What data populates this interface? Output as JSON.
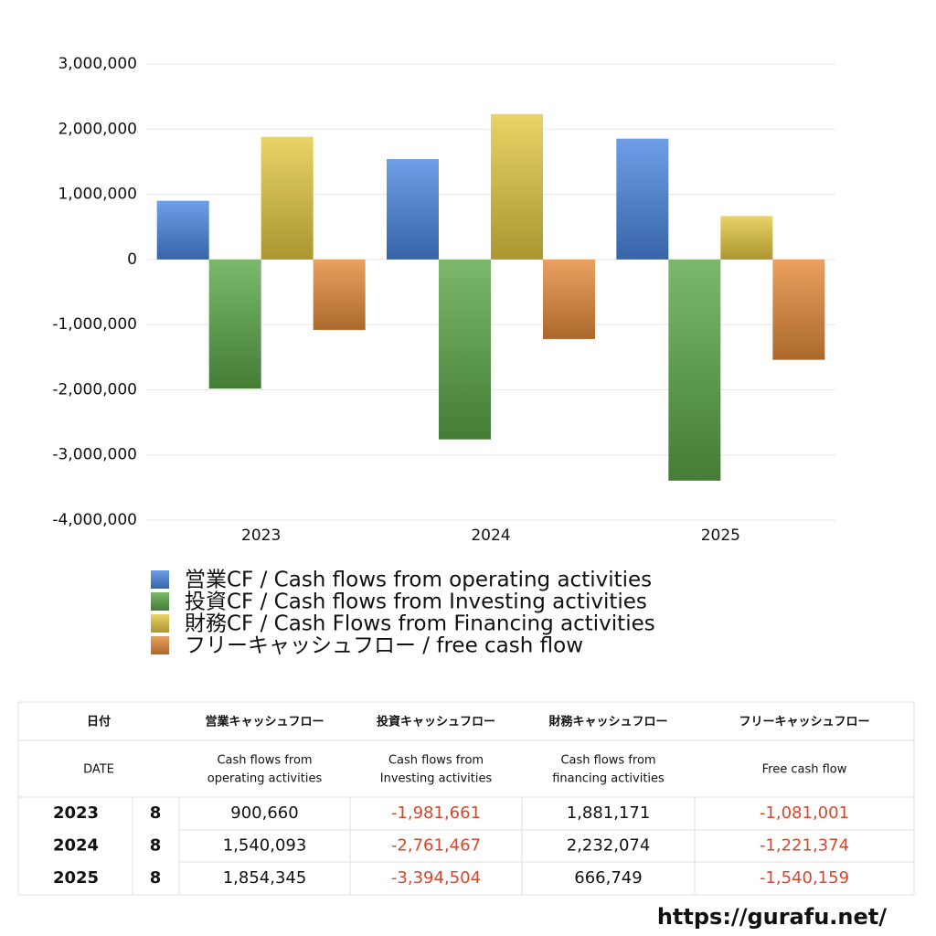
{
  "chart_data": {
    "type": "bar",
    "categories": [
      "2023",
      "2024",
      "2025"
    ],
    "series": [
      {
        "name": "営業CF / Cash flows from operating activities",
        "color": "#4a86e0",
        "values": [
          900660,
          1540093,
          1854345
        ]
      },
      {
        "name": "投資CF / Cash flows from Investing activities",
        "color": "#5aa648",
        "values": [
          -1981661,
          -2761467,
          -3394504
        ]
      },
      {
        "name": "財務CF / Cash Flows from Financing activities",
        "color": "#e4c840",
        "values": [
          1881171,
          2232074,
          666749
        ]
      },
      {
        "name": "フリーキャッシュフロー / free cash flow",
        "color": "#e58a3a",
        "values": [
          -1081001,
          -1221374,
          -1540159
        ]
      }
    ],
    "ylim": [
      -4000000,
      3000000
    ],
    "yticks": [
      {
        "value": -4000000,
        "label": "-4,000,000"
      },
      {
        "value": -3000000,
        "label": "-3,000,000"
      },
      {
        "value": -2000000,
        "label": "-2,000,000"
      },
      {
        "value": -1000000,
        "label": "-1,000,000"
      },
      0,
      {
        "value": 1000000,
        "label": "1,000,000"
      },
      {
        "value": 2000000,
        "label": "2,000,000"
      },
      {
        "value": 3000000,
        "label": "3,000,000"
      }
    ],
    "grid": true
  },
  "table": {
    "header": [
      [
        "日付",
        "営業キャッシュフロー",
        "投資キャッシュフロー",
        "財務キャッシュフロー",
        "フリーキャッシュフロー"
      ],
      [
        [
          "DATE"
        ],
        [
          "Cash flows from",
          "operating activities"
        ],
        [
          "Cash flows from",
          "Investing activities"
        ],
        [
          "Cash flows from",
          "financing activities"
        ],
        [
          "Free cash flow"
        ]
      ]
    ],
    "rows": [
      [
        "2023",
        "8",
        "900,660",
        "-1,981,661",
        "1,881,171",
        "-1,081,001"
      ],
      [
        "2024",
        "8",
        "1,540,093",
        "-2,761,467",
        "2,232,074",
        "-1,221,374"
      ],
      [
        "2025",
        "8",
        "1,854,345",
        "-3,394,504",
        "666,749",
        "-1,540,159"
      ]
    ]
  },
  "footer": {
    "url": "https://gurafu.net/"
  }
}
